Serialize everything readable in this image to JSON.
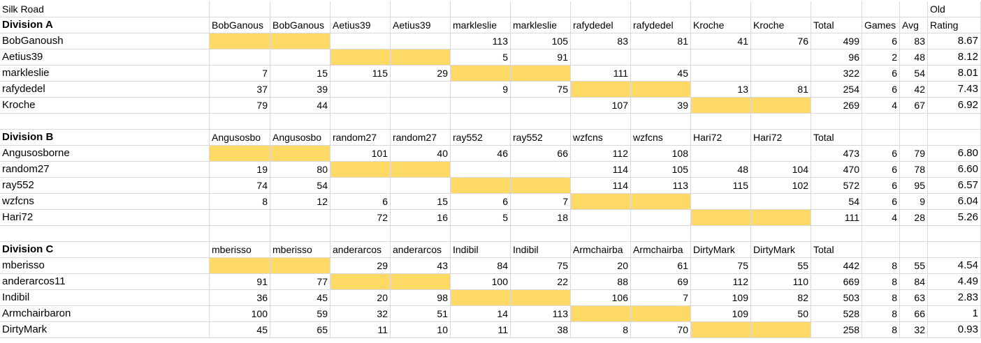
{
  "sheet": {
    "title": "Silk Road",
    "old_label": "Old",
    "divisions": [
      {
        "header": {
          "label": "Division A",
          "columns": [
            "BobGanous",
            "BobGanous",
            "Aetius39",
            "Aetius39",
            "markleslie",
            "markleslie",
            "rafydedel",
            "rafydedel",
            "Kroche",
            "Kroche",
            "Total",
            "Games",
            "Avg",
            "Rating"
          ]
        },
        "rows": [
          {
            "name": "BobGanoush",
            "cells": [
              null,
              null,
              null,
              null,
              113,
              105,
              83,
              81,
              41,
              76,
              499,
              6,
              83,
              "8.67"
            ]
          },
          {
            "name": "Aetius39",
            "cells": [
              null,
              null,
              null,
              null,
              5,
              91,
              null,
              null,
              null,
              null,
              96,
              2,
              48,
              "8.12"
            ]
          },
          {
            "name": "markleslie",
            "cells": [
              7,
              15,
              115,
              29,
              null,
              null,
              111,
              45,
              null,
              null,
              322,
              6,
              54,
              "8.01"
            ]
          },
          {
            "name": "rafydedel",
            "cells": [
              37,
              39,
              null,
              null,
              9,
              75,
              null,
              null,
              13,
              81,
              254,
              6,
              42,
              "7.43"
            ]
          },
          {
            "name": "Kroche",
            "cells": [
              79,
              44,
              null,
              null,
              null,
              null,
              107,
              39,
              null,
              null,
              269,
              4,
              67,
              "6.92"
            ]
          }
        ]
      },
      {
        "header": {
          "label": "Division B",
          "columns": [
            "Angusosbo",
            "Angusosbo",
            "random27",
            "random27",
            "ray552",
            "ray552",
            "wzfcns",
            "wzfcns",
            "Hari72",
            "Hari72",
            "Total",
            null,
            null,
            null
          ]
        },
        "rows": [
          {
            "name": "Angusosborne",
            "cells": [
              null,
              null,
              101,
              40,
              46,
              66,
              112,
              108,
              null,
              null,
              473,
              6,
              79,
              "6.80"
            ]
          },
          {
            "name": "random27",
            "cells": [
              19,
              80,
              null,
              null,
              null,
              null,
              114,
              105,
              48,
              104,
              470,
              6,
              78,
              "6.60"
            ]
          },
          {
            "name": "ray552",
            "cells": [
              74,
              54,
              null,
              null,
              null,
              null,
              114,
              113,
              115,
              102,
              572,
              6,
              95,
              "6.57"
            ]
          },
          {
            "name": "wzfcns",
            "cells": [
              8,
              12,
              6,
              15,
              6,
              7,
              null,
              null,
              null,
              null,
              54,
              6,
              9,
              "6.04"
            ]
          },
          {
            "name": "Hari72",
            "cells": [
              null,
              null,
              72,
              16,
              5,
              18,
              null,
              null,
              null,
              null,
              111,
              4,
              28,
              "5.26"
            ]
          }
        ]
      },
      {
        "header": {
          "label": "Division C",
          "columns": [
            "mberisso",
            "mberisso",
            "anderarcos",
            "anderarcos",
            "Indibil",
            "Indibil",
            "Armchairba",
            "Armchairba",
            "DirtyMark",
            "DirtyMark",
            "Total",
            null,
            null,
            null
          ]
        },
        "rows": [
          {
            "name": "mberisso",
            "cells": [
              null,
              null,
              29,
              43,
              84,
              75,
              20,
              61,
              75,
              55,
              442,
              8,
              55,
              "4.54"
            ]
          },
          {
            "name": "anderarcos11",
            "cells": [
              91,
              77,
              null,
              null,
              100,
              22,
              88,
              69,
              112,
              110,
              669,
              8,
              84,
              "4.49"
            ]
          },
          {
            "name": "Indibil",
            "cells": [
              36,
              45,
              20,
              98,
              null,
              null,
              106,
              7,
              109,
              82,
              503,
              8,
              63,
              "2.83"
            ]
          },
          {
            "name": "Armchairbaron",
            "cells": [
              100,
              59,
              32,
              51,
              14,
              113,
              null,
              null,
              109,
              50,
              528,
              8,
              66,
              "1"
            ]
          },
          {
            "name": "DirtyMark",
            "cells": [
              45,
              65,
              11,
              10,
              11,
              38,
              8,
              70,
              null,
              null,
              258,
              8,
              32,
              "0.93"
            ]
          }
        ]
      }
    ]
  }
}
